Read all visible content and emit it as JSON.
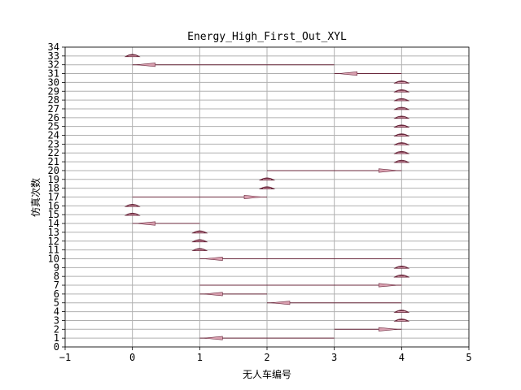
{
  "chart_data": {
    "type": "line",
    "title": "Energy_High_First_Out_XYL",
    "xlabel": "无人车编号",
    "ylabel": "仿真次数",
    "xlim": [
      -1,
      5
    ],
    "ylim": [
      0,
      34
    ],
    "xticks": [
      "−1",
      "0",
      "1",
      "2",
      "3",
      "4",
      "5"
    ],
    "xtick_values": [
      -1,
      0,
      1,
      2,
      3,
      4,
      5
    ],
    "yticks": [
      "0",
      "1",
      "2",
      "3",
      "4",
      "5",
      "6",
      "7",
      "8",
      "9",
      "10",
      "11",
      "12",
      "13",
      "14",
      "15",
      "16",
      "17",
      "18",
      "19",
      "20",
      "21",
      "22",
      "23",
      "24",
      "25",
      "26",
      "27",
      "28",
      "29",
      "30",
      "31",
      "32",
      "33",
      "34"
    ],
    "grid": true,
    "legend": "none",
    "colors": {
      "line": "#6b2a3e",
      "arrow": "#d9a0b0",
      "grid": "#b0b0b0"
    },
    "transitions": [
      {
        "run": 1,
        "from": 1,
        "to": 3
      },
      {
        "run": 2,
        "from": 4,
        "to": 3
      },
      {
        "run": 3,
        "from": 4,
        "to": 4
      },
      {
        "run": 4,
        "from": 4,
        "to": 4
      },
      {
        "run": 5,
        "from": 2,
        "to": 4
      },
      {
        "run": 6,
        "from": 1,
        "to": 2
      },
      {
        "run": 7,
        "from": 4,
        "to": 1
      },
      {
        "run": 8,
        "from": 4,
        "to": 4
      },
      {
        "run": 9,
        "from": 4,
        "to": 4
      },
      {
        "run": 10,
        "from": 1,
        "to": 4
      },
      {
        "run": 11,
        "from": 1,
        "to": 1
      },
      {
        "run": 12,
        "from": 1,
        "to": 1
      },
      {
        "run": 13,
        "from": 1,
        "to": 1
      },
      {
        "run": 14,
        "from": 0,
        "to": 1
      },
      {
        "run": 15,
        "from": 0,
        "to": 0
      },
      {
        "run": 16,
        "from": 0,
        "to": 0
      },
      {
        "run": 17,
        "from": 2,
        "to": 0
      },
      {
        "run": 18,
        "from": 2,
        "to": 2
      },
      {
        "run": 19,
        "from": 2,
        "to": 2
      },
      {
        "run": 20,
        "from": 4,
        "to": 2
      },
      {
        "run": 21,
        "from": 4,
        "to": 4
      },
      {
        "run": 22,
        "from": 4,
        "to": 4
      },
      {
        "run": 23,
        "from": 4,
        "to": 4
      },
      {
        "run": 24,
        "from": 4,
        "to": 4
      },
      {
        "run": 25,
        "from": 4,
        "to": 4
      },
      {
        "run": 26,
        "from": 4,
        "to": 4
      },
      {
        "run": 27,
        "from": 4,
        "to": 4
      },
      {
        "run": 28,
        "from": 4,
        "to": 4
      },
      {
        "run": 29,
        "from": 4,
        "to": 4
      },
      {
        "run": 30,
        "from": 4,
        "to": 4
      },
      {
        "run": 31,
        "from": 3,
        "to": 4
      },
      {
        "run": 32,
        "from": 0,
        "to": 3
      },
      {
        "run": 33,
        "from": 0,
        "to": 0
      }
    ]
  }
}
